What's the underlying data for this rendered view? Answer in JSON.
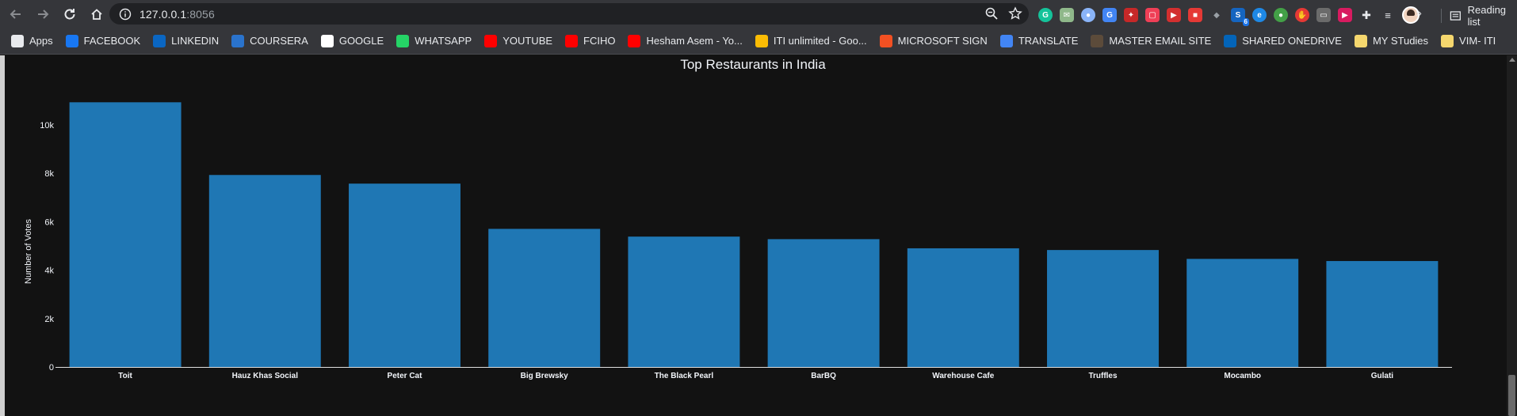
{
  "browser": {
    "url_host": "127.0.0.1",
    "url_port": ":8056",
    "bookmarks": [
      {
        "label": "Apps",
        "icon": "apps-grid-icon",
        "color": "#e8eaed"
      },
      {
        "label": "FACEBOOK",
        "icon": "facebook-icon",
        "color": "#1877f2"
      },
      {
        "label": "LINKEDIN",
        "icon": "linkedin-icon",
        "color": "#0a66c2"
      },
      {
        "label": "COURSERA",
        "icon": "coursera-icon",
        "color": "#2a73cc"
      },
      {
        "label": "GOOGLE",
        "icon": "google-icon",
        "color": "#ffffff"
      },
      {
        "label": "WHATSAPP",
        "icon": "whatsapp-icon",
        "color": "#25d366"
      },
      {
        "label": "YOUTUBE",
        "icon": "youtube-icon",
        "color": "#ff0000"
      },
      {
        "label": "FCIHO",
        "icon": "youtube-icon",
        "color": "#ff0000"
      },
      {
        "label": "Hesham Asem - Yo...",
        "icon": "youtube-icon",
        "color": "#ff0000"
      },
      {
        "label": "ITI unlimited - Goo...",
        "icon": "google-drive-icon",
        "color": "#fbbc04"
      },
      {
        "label": "MICROSOFT SIGN",
        "icon": "microsoft-icon",
        "color": "#f25022"
      },
      {
        "label": "TRANSLATE",
        "icon": "translate-icon",
        "color": "#4285f4"
      },
      {
        "label": "MASTER EMAIL SITE",
        "icon": "email-site-icon",
        "color": "#5c4b3a"
      },
      {
        "label": "SHARED ONEDRIVE",
        "icon": "onedrive-icon",
        "color": "#0364b8"
      },
      {
        "label": "MY STudies",
        "icon": "folder-icon",
        "color": "#f5d76e"
      },
      {
        "label": "VIM- ITI",
        "icon": "folder-icon",
        "color": "#f5d76e"
      }
    ],
    "more_label": "»",
    "reading_list_label": "Reading list"
  },
  "colors": {
    "bar": "#1f77b4",
    "background": "#121212",
    "axis_text": "#f2f5fa"
  },
  "chart_data": {
    "type": "bar",
    "title": "Top Restaurants in India",
    "xlabel": "",
    "ylabel": "Number of Votes",
    "ylim": [
      0,
      11500
    ],
    "y_ticks": [
      0,
      2000,
      4000,
      6000,
      8000,
      10000
    ],
    "y_tick_labels": [
      "0",
      "2k",
      "4k",
      "6k",
      "8k",
      "10k"
    ],
    "categories": [
      "Toit",
      "Hauz Khas Social",
      "Peter Cat",
      "Big Brewsky",
      "The Black Pearl",
      "BarBQ",
      "Warehouse Cafe",
      "Truffles",
      "Mocambo",
      "Gulati"
    ],
    "values": [
      10934,
      7931,
      7574,
      5705,
      5385,
      5280,
      4902,
      4831,
      4465,
      4376
    ],
    "grid": false,
    "legend": "none"
  }
}
